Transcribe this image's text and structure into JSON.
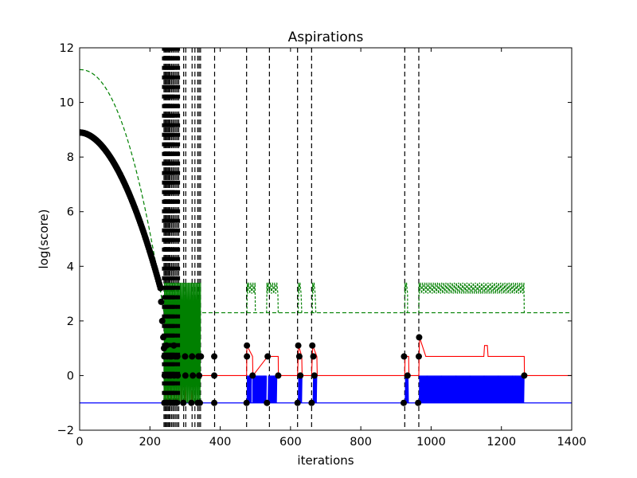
{
  "chart_data": {
    "type": "line",
    "title": "Aspirations",
    "xlabel": "iterations",
    "ylabel": "log(score)",
    "xlim": [
      0,
      1400
    ],
    "ylim": [
      -2,
      12
    ],
    "xticks": [
      0,
      200,
      400,
      600,
      800,
      1000,
      1200,
      1400
    ],
    "yticks": [
      -2,
      0,
      2,
      4,
      6,
      8,
      10,
      12
    ],
    "xtick_labels": [
      "0",
      "200",
      "400",
      "600",
      "800",
      "1000",
      "1200",
      "1400"
    ],
    "ytick_labels": [
      "−2",
      "0",
      "2",
      "4",
      "6",
      "8",
      "10",
      "12"
    ],
    "grid": false,
    "legend": false,
    "colors": {
      "blue": "#0000ff",
      "red": "#ff0000",
      "green": "#008000",
      "black": "#000000"
    },
    "series": [
      {
        "style": "solid",
        "color": "#0000ff",
        "baseline": -1,
        "oscillation_ranges": [
          [
            476,
            490
          ],
          [
            492,
            532
          ],
          [
            536,
            562
          ],
          [
            622,
            634
          ],
          [
            664,
            676
          ],
          [
            926,
            936
          ],
          [
            966,
            1265
          ]
        ],
        "oscillation_low": -1,
        "oscillation_high": 0
      },
      {
        "style": "solid",
        "color": "#ff0000",
        "x": [
          240,
          245,
          250,
          255,
          260,
          265,
          270,
          275,
          280,
          285,
          290,
          295,
          300,
          310,
          320,
          330,
          340,
          345,
          383,
          475,
          476,
          492,
          493,
          535,
          565,
          565.5,
          620,
          623,
          632,
          633,
          660,
          663,
          675,
          676,
          925,
          926,
          936,
          937,
          965,
          967,
          985,
          1150,
          1152,
          1160,
          1162,
          1265,
          1265.5,
          1400
        ],
        "y": [
          -1,
          0.7,
          -1,
          0.7,
          -1,
          0.7,
          -1,
          0.7,
          -1,
          0.7,
          -1,
          0.7,
          -1,
          0.7,
          -1,
          0.7,
          0,
          0,
          0,
          0,
          1.1,
          0.7,
          0,
          0.7,
          0.7,
          0,
          0,
          1.1,
          0.7,
          0,
          0,
          1.1,
          0.7,
          0,
          0,
          0.7,
          0.7,
          0,
          0,
          1.4,
          0.7,
          0.7,
          1.1,
          1.1,
          0.7,
          0.7,
          0,
          0
        ]
      },
      {
        "style": "dashed",
        "color": "#008000",
        "curve_start": 11.2,
        "curve_end_x": 240,
        "curve_end_y": 2.3,
        "plateau": 2.3,
        "osc_low": 3.0,
        "osc_high": 3.4,
        "bumps": [
          [
            476,
            500
          ],
          [
            532,
            565
          ],
          [
            622,
            632
          ],
          [
            662,
            672
          ],
          [
            925,
            933
          ],
          [
            965,
            1265
          ]
        ],
        "osc_ranges": [
          [
            240,
            345
          ]
        ]
      }
    ],
    "black_points_bulk": {
      "x_start": 0,
      "x_end": 230,
      "y_start": 8.9,
      "y_end": 3.2,
      "count": 120
    },
    "black_points": [
      [
        232,
        2.7
      ],
      [
        235,
        2.0
      ],
      [
        238,
        1.4
      ],
      [
        240,
        1.0
      ],
      [
        241,
        -1
      ],
      [
        241,
        0.7
      ],
      [
        242,
        0
      ],
      [
        246,
        -1
      ],
      [
        247,
        1.1
      ],
      [
        249,
        0.7
      ],
      [
        250,
        -1
      ],
      [
        252,
        0
      ],
      [
        256,
        -1
      ],
      [
        257,
        0.7
      ],
      [
        259,
        0
      ],
      [
        260,
        -1
      ],
      [
        262,
        0.7
      ],
      [
        266,
        -1
      ],
      [
        268,
        1.1
      ],
      [
        269,
        0
      ],
      [
        270,
        -1
      ],
      [
        272,
        0.7
      ],
      [
        276,
        -1
      ],
      [
        278,
        0.7
      ],
      [
        279,
        0
      ],
      [
        295,
        -1
      ],
      [
        300,
        0.7
      ],
      [
        301,
        0
      ],
      [
        318,
        -1
      ],
      [
        320,
        0.7
      ],
      [
        322,
        0
      ],
      [
        336,
        -1
      ],
      [
        338,
        0.7
      ],
      [
        340,
        0
      ],
      [
        342,
        -1
      ],
      [
        345,
        0.7
      ],
      [
        383,
        -1
      ],
      [
        383,
        0.7
      ],
      [
        383,
        0
      ],
      [
        475,
        -1
      ],
      [
        476,
        0.7
      ],
      [
        476,
        1.1
      ],
      [
        492,
        0
      ],
      [
        533,
        -1
      ],
      [
        535,
        0.7
      ],
      [
        565,
        0
      ],
      [
        620,
        -1
      ],
      [
        622,
        1.1
      ],
      [
        625,
        0.7
      ],
      [
        628,
        0
      ],
      [
        660,
        -1
      ],
      [
        662,
        1.1
      ],
      [
        665,
        0.7
      ],
      [
        668,
        0
      ],
      [
        922,
        -1
      ],
      [
        923,
        0.7
      ],
      [
        933,
        0
      ],
      [
        963,
        -1
      ],
      [
        965,
        0.7
      ],
      [
        966,
        1.4
      ],
      [
        1265,
        0
      ]
    ],
    "vertical_dashed_lines": [
      240,
      243,
      246,
      249,
      252,
      255,
      258,
      262,
      266,
      270,
      274,
      278,
      282,
      296,
      302,
      320,
      328,
      336,
      340,
      344,
      384,
      475,
      540,
      620,
      660,
      925,
      965
    ],
    "dense_marker_columns": [
      240,
      245,
      250,
      255,
      260,
      265,
      270,
      280
    ],
    "dense_marker_y_range": [
      -1,
      12
    ]
  }
}
